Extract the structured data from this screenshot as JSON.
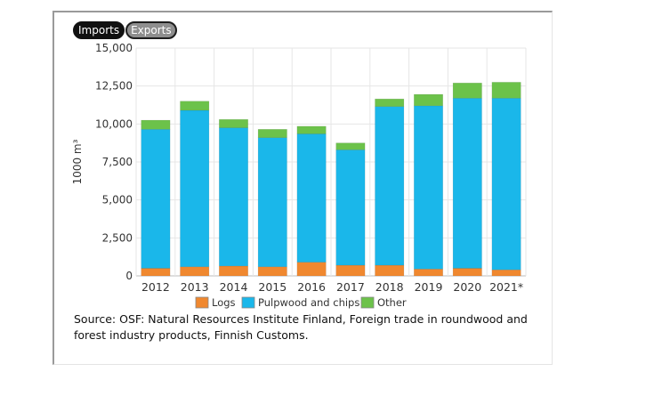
{
  "tabs": [
    {
      "label": "Imports",
      "active": true
    },
    {
      "label": "Exports",
      "active": false
    }
  ],
  "source": "Source: OSF: Natural Resources Institute Finland, Foreign trade in roundwood and forest industry products, Finnish Customs.",
  "chart_data": {
    "type": "bar",
    "stacked": true,
    "categories": [
      "2012",
      "2013",
      "2014",
      "2015",
      "2016",
      "2017",
      "2018",
      "2019",
      "2020",
      "2021*"
    ],
    "ylabel": "1000 m³",
    "ylim": [
      0,
      15000
    ],
    "yticks": [
      0,
      2500,
      5000,
      7500,
      10000,
      12500,
      15000
    ],
    "ytick_labels": [
      "0",
      "2,500",
      "5,000",
      "7,500",
      "10,000",
      "12,500",
      "15,000"
    ],
    "grid": true,
    "legend_position": "bottom",
    "series": [
      {
        "name": "Logs",
        "color": "#f0882f",
        "values": [
          500,
          600,
          650,
          600,
          900,
          700,
          700,
          450,
          500,
          400
        ]
      },
      {
        "name": "Pulpwood and chips",
        "color": "#1ab7ea",
        "values": [
          9150,
          10300,
          9100,
          8500,
          8450,
          7600,
          10450,
          10750,
          11200,
          11300
        ]
      },
      {
        "name": "Other",
        "color": "#6cc24a",
        "values": [
          600,
          600,
          550,
          550,
          500,
          450,
          500,
          750,
          1000,
          1050
        ]
      }
    ]
  }
}
